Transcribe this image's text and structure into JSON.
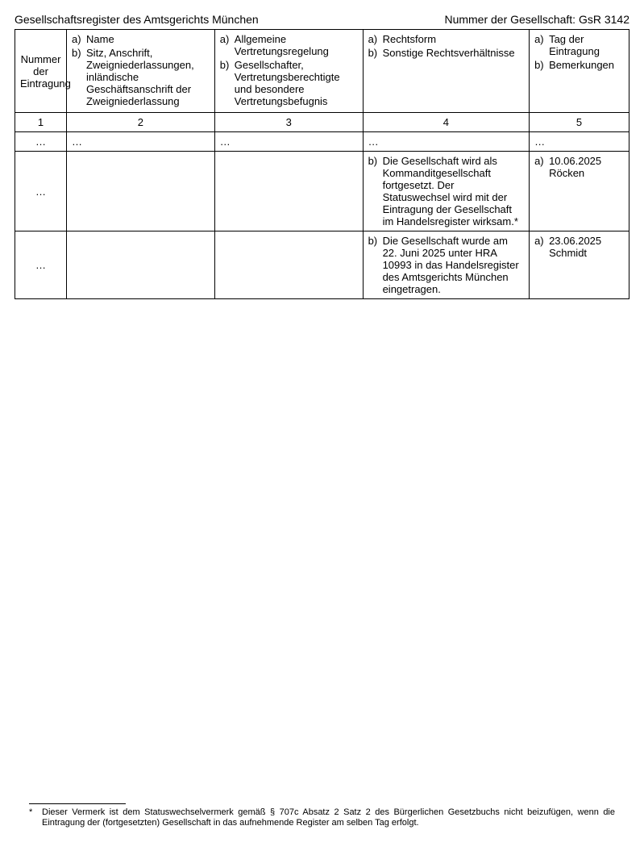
{
  "header": {
    "left": "Gesellschaftsregister des Amtsgerichts München",
    "right_label": "Nummer der Gesellschaft: ",
    "right_value": "GsR 3142"
  },
  "columns": {
    "c1_label": "Nummer der Eintragung",
    "c2": {
      "a": "Name",
      "b": "Sitz, Anschrift, Zweigniederlassungen, inländische Geschäftsanschrift der Zweigniederlassung"
    },
    "c3": {
      "a": "Allgemeine Vertretungsregelung",
      "b": "Gesellschafter, Vertretungsberechtigte und besondere Vertretungsbefugnis"
    },
    "c4": {
      "a": "Rechtsform",
      "b": "Sonstige Rechtsverhältnisse"
    },
    "c5": {
      "a": "Tag der Eintragung",
      "b": "Bemerkungen"
    },
    "nums": {
      "n1": "1",
      "n2": "2",
      "n3": "3",
      "n4": "4",
      "n5": "5"
    }
  },
  "ellipsis": "…",
  "rows": [
    {
      "c1": "…",
      "c4_b": "Die Gesellschaft wird als Kommanditgesellschaft fortgesetzt. Der Statuswechsel wird mit der Eintragung der Gesellschaft im Handelsregister wirksam.*",
      "c5_a_line1": "10.06.2025",
      "c5_a_line2": "Röcken"
    },
    {
      "c1": "…",
      "c4_b": "Die Gesellschaft wurde am 22. Juni 2025 unter HRA 10993 in das Handelsregister des Amtsgerichts München eingetragen.",
      "c5_a_line1": "23.06.2025",
      "c5_a_line2": "Schmidt"
    }
  ],
  "labels": {
    "a": "a)",
    "b": "b)"
  },
  "footnote": {
    "star": "*",
    "text": "Dieser Vermerk ist dem Statuswechselvermerk gemäß § 707c Absatz 2 Satz 2 des Bürgerlichen Gesetzbuchs nicht beizufügen, wenn die Eintragung der (fortgesetzten) Gesellschaft in das aufnehmende Register am selben Tag erfolgt."
  }
}
